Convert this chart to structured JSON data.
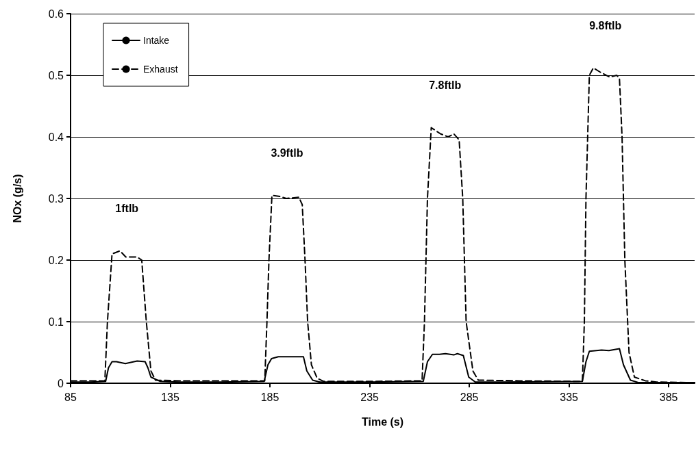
{
  "chart_data": {
    "type": "line",
    "xlabel": "Time (s)",
    "ylabel": "NOx (g/s)",
    "xlim": [
      85,
      398
    ],
    "xticks": [
      85,
      135,
      185,
      235,
      285,
      335,
      385
    ],
    "ylim": [
      0,
      0.6
    ],
    "yticks": [
      0,
      0.1,
      0.2,
      0.3,
      0.4,
      0.5,
      0.6
    ],
    "grid": "y",
    "legend": "top left",
    "marker": "none",
    "series": [
      {
        "name": "Intake",
        "color": "#000000",
        "line_style": "solid",
        "x": [
          85,
          95,
          102.6,
          104,
          105.8,
          108,
          112.5,
          118.4,
          122.4,
          123.8,
          125.3,
          130,
          140,
          160,
          182.1,
          184,
          185.8,
          189.2,
          195,
          201.8,
          203.5,
          206.4,
          210,
          235,
          261.9,
          264,
          266.5,
          270,
          273,
          277.2,
          279,
          282,
          284.7,
          288,
          300,
          341.7,
          343.5,
          345.2,
          351.3,
          355,
          360.3,
          362.3,
          365.8,
          370,
          385,
          398
        ],
        "values": [
          0.002,
          0.002,
          0.003,
          0.025,
          0.035,
          0.035,
          0.032,
          0.036,
          0.035,
          0.025,
          0.01,
          0.003,
          0.002,
          0.002,
          0.003,
          0.03,
          0.04,
          0.043,
          0.043,
          0.043,
          0.02,
          0.005,
          0.002,
          0.002,
          0.003,
          0.035,
          0.047,
          0.047,
          0.048,
          0.046,
          0.048,
          0.045,
          0.01,
          0.002,
          0.002,
          0.003,
          0.035,
          0.052,
          0.054,
          0.053,
          0.056,
          0.03,
          0.005,
          0.001,
          0.001,
          0.001
        ]
      },
      {
        "name": "Exhaust",
        "color": "#000000",
        "line_style": "dashed",
        "x": [
          85,
          95,
          102.2,
          103.5,
          105.8,
          109.8,
          112.7,
          118.4,
          120.7,
          123,
          125.3,
          127.6,
          140,
          160,
          182.4,
          183.5,
          184.5,
          186,
          190.4,
          193.2,
          199.5,
          201.2,
          202.6,
          203.9,
          205.8,
          208.7,
          212,
          235,
          261.3,
          262.5,
          264,
          265.9,
          270.5,
          274.4,
          277.2,
          279.9,
          281.7,
          283.4,
          286.8,
          289.5,
          310,
          341.7,
          342.7,
          343.5,
          345.2,
          347.2,
          350.7,
          355.5,
          358.9,
          360.3,
          361.6,
          363,
          365.1,
          367.8,
          373.3,
          378.8,
          398
        ],
        "values": [
          0.004,
          0.004,
          0.004,
          0.1,
          0.21,
          0.215,
          0.205,
          0.205,
          0.2,
          0.1,
          0.02,
          0.005,
          0.004,
          0.004,
          0.004,
          0.1,
          0.2,
          0.305,
          0.303,
          0.3,
          0.302,
          0.29,
          0.2,
          0.1,
          0.03,
          0.008,
          0.003,
          0.003,
          0.004,
          0.1,
          0.3,
          0.415,
          0.405,
          0.4,
          0.405,
          0.395,
          0.3,
          0.1,
          0.02,
          0.005,
          0.004,
          0.003,
          0.1,
          0.3,
          0.5,
          0.512,
          0.505,
          0.497,
          0.5,
          0.495,
          0.4,
          0.2,
          0.05,
          0.01,
          0.004,
          0.002,
          0.001
        ]
      }
    ],
    "annotations": [
      "1ftlb",
      "3.9ftlb",
      "7.8ftlb",
      "9.8ftlb"
    ]
  }
}
